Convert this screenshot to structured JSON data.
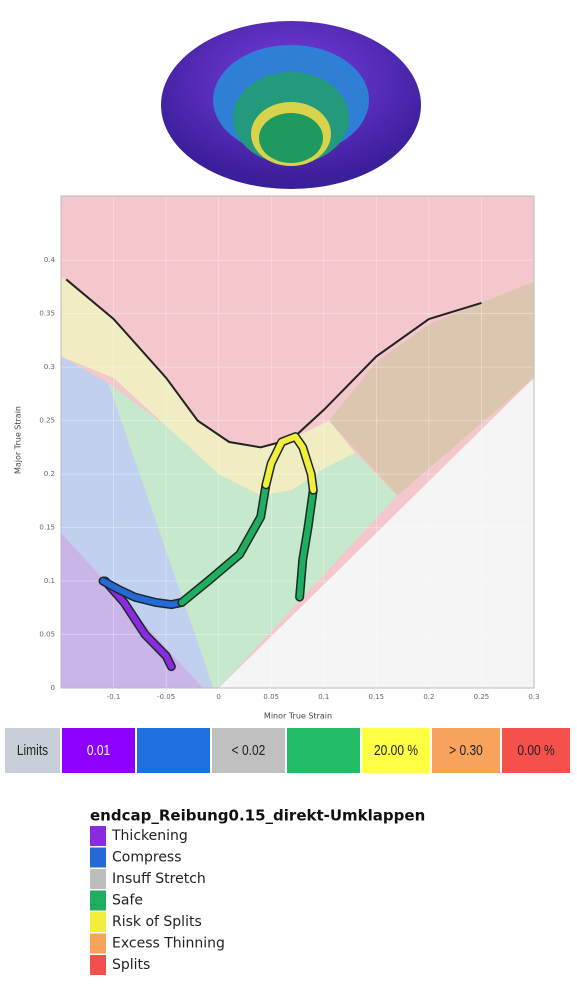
{
  "chart_data": {
    "type": "line",
    "x_label": "Minor True Strain",
    "y_label": "Major True Strain",
    "xlim": [
      -0.15,
      0.3
    ],
    "ylim": [
      0,
      0.46
    ],
    "xticks": [
      -0.1,
      -0.05,
      0,
      0.05,
      0.1,
      0.15,
      0.2,
      0.25,
      0.3
    ],
    "yticks": [
      0,
      0.05,
      0.1,
      0.15,
      0.2,
      0.25,
      0.3,
      0.35,
      0.4
    ],
    "grid": true,
    "zones": [
      {
        "color": "#f3c7cb",
        "x": [
          -0.15,
          0.3,
          0.3,
          -0.15
        ],
        "y": [
          0,
          0,
          0.46,
          0.46
        ]
      },
      {
        "color": "#dcc6b0",
        "x": [
          0.105,
          0.15,
          0.2,
          0.25,
          0.3,
          0.3,
          0.17
        ],
        "y": [
          0.25,
          0.305,
          0.34,
          0.36,
          0.38,
          0.29,
          0.18
        ]
      },
      {
        "color": "#f1edc3",
        "x": [
          -0.15,
          -0.1,
          -0.05,
          -0.02,
          0.01,
          0.04,
          0.07,
          0.105,
          0.13,
          0.1,
          0.07,
          0.04,
          0,
          -0.05,
          -0.1,
          -0.15
        ],
        "y": [
          0.385,
          0.345,
          0.29,
          0.25,
          0.23,
          0.225,
          0.233,
          0.25,
          0.22,
          0.205,
          0.185,
          0.18,
          0.2,
          0.245,
          0.29,
          0.31
        ]
      },
      {
        "color": "#c6e8cd",
        "x": [
          -0.105,
          -0.05,
          0,
          0.04,
          0.07,
          0.1,
          0.13,
          0.17,
          0,
          -0.005
        ],
        "y": [
          0.285,
          0.245,
          0.2,
          0.18,
          0.185,
          0.205,
          0.22,
          0.18,
          0,
          0
        ]
      },
      {
        "color": "#c2d0f0",
        "x": [
          -0.15,
          -0.15,
          -0.105,
          -0.005,
          -0.015
        ],
        "y": [
          0.145,
          0.31,
          0.285,
          0,
          0
        ]
      },
      {
        "color": "#cab5e8",
        "x": [
          -0.15,
          -0.15,
          -0.015
        ],
        "y": [
          0,
          0.145,
          0
        ]
      },
      {
        "color": "#f5f5f5",
        "x": [
          0,
          0.3,
          0.3
        ],
        "y": [
          0,
          0,
          0.29
        ]
      }
    ],
    "limit_curve": {
      "color": "#222222",
      "x": [
        -0.145,
        -0.1,
        -0.05,
        -0.02,
        0.01,
        0.04,
        0.07,
        0.1,
        0.15,
        0.2,
        0.25
      ],
      "y": [
        0.382,
        0.345,
        0.29,
        0.25,
        0.23,
        0.225,
        0.233,
        0.26,
        0.31,
        0.345,
        0.36
      ]
    },
    "legend_title": "endcap_Reibung0.15_direkt-Umklappen",
    "series": [
      {
        "name": "Thickening",
        "color": "#8a2be2",
        "x": [
          -0.108,
          -0.09,
          -0.07,
          -0.05,
          -0.045
        ],
        "y": [
          0.1,
          0.08,
          0.05,
          0.03,
          0.02
        ]
      },
      {
        "name": "Compress",
        "color": "#2569d6",
        "x": [
          -0.11,
          -0.095,
          -0.08,
          -0.06,
          -0.045,
          -0.035
        ],
        "y": [
          0.1,
          0.092,
          0.085,
          0.08,
          0.078,
          0.08
        ]
      },
      {
        "name": "Insuff Stretch",
        "color": "#bdbdbd"
      },
      {
        "name": "Safe",
        "color": "#1fae5e",
        "x": [
          -0.035,
          -0.01,
          0.02,
          0.04,
          0.045,
          null,
          0.077,
          0.08,
          0.085,
          0.09
        ],
        "y": [
          0.08,
          0.1,
          0.125,
          0.16,
          0.19,
          null,
          0.085,
          0.12,
          0.15,
          0.185
        ]
      },
      {
        "name": "Risk of Splits",
        "color": "#f2ee3a",
        "x": [
          0.045,
          0.05,
          0.06,
          0.073,
          0.08,
          0.088,
          0.09
        ],
        "y": [
          0.19,
          0.21,
          0.23,
          0.235,
          0.225,
          0.2,
          0.185
        ]
      },
      {
        "name": "Excess Thinning",
        "color": "#f7a35c"
      },
      {
        "name": "Splits",
        "color": "#f2504c"
      }
    ]
  },
  "limits": {
    "cells": [
      {
        "label": "Limits",
        "color": "#c9cfd9"
      },
      {
        "label": "0.01",
        "color": "#8b00ff"
      },
      {
        "color": "#1e6fe0"
      },
      {
        "label": "< 0.02",
        "color": "#c0c0c0"
      },
      {
        "color": "#22bb66"
      },
      {
        "label": "20.00 %",
        "color": "#ffff44"
      },
      {
        "label": "> 0.30",
        "color": "#f7a35c"
      },
      {
        "label": "0.00 %",
        "color": "#f5504c"
      }
    ]
  }
}
